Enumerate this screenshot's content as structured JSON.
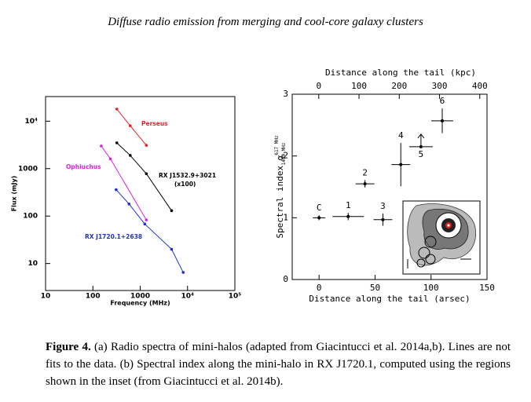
{
  "header": {
    "title": "Diffuse radio emission from merging and cool-core galaxy clusters"
  },
  "chart_data": [
    {
      "type": "line",
      "xscale": "log",
      "yscale": "log",
      "xlabel": "Frequency (MHz)",
      "ylabel": "Flux (mJy)",
      "xlim": [
        10,
        100000
      ],
      "ylim": [
        2.7,
        33000
      ],
      "xticks": [
        10,
        100,
        1000,
        {
          "value": 10000,
          "label": "10⁴"
        },
        {
          "value": 100000,
          "label": "10⁵"
        }
      ],
      "yticks": [
        10,
        100,
        1000,
        {
          "value": 10000,
          "label": "10⁴"
        }
      ],
      "series": [
        {
          "name": "Perseus",
          "color": "#e8202a",
          "x": [
            320,
            615,
            1350
          ],
          "values": [
            18000,
            8000,
            3100
          ]
        },
        {
          "name": "RX J1532.9+3021",
          "color": "#000000",
          "x": [
            320,
            615,
            1350,
            4600
          ],
          "values": [
            3500,
            1900,
            780,
            130
          ]
        },
        {
          "name": "Ophiuchus",
          "color": "#e020e0",
          "x": [
            150,
            235,
            1350
          ],
          "values": [
            3000,
            1600,
            83
          ]
        },
        {
          "name": "RX J1720.1+2638",
          "color": "#2030d0",
          "x": [
            310,
            580,
            1250,
            4600,
            8100
          ],
          "values": [
            360,
            180,
            68,
            20,
            6.5
          ]
        }
      ],
      "annotations": [
        "(x100)"
      ]
    },
    {
      "type": "scatter",
      "xlabel": "Distance along the tail (arsec)",
      "x2label": "Distance along the tail (kpc)",
      "ylabel": "Spectral index α",
      "ylabel_sup": "617 MHz",
      "ylabel_sub": "1400 MHz",
      "xlim": [
        -24,
        150
      ],
      "x2lim": [
        -66,
        418
      ],
      "ylim": [
        0,
        3
      ],
      "xticks": [
        0,
        50,
        100,
        150
      ],
      "x2ticks": [
        0,
        100,
        200,
        300,
        400
      ],
      "yticks": [
        0,
        1,
        2,
        3
      ],
      "point_labels": [
        "C",
        "1",
        "2",
        "3",
        "4",
        "5",
        "6"
      ],
      "x": [
        0,
        26,
        41,
        57,
        73,
        91,
        110
      ],
      "values": [
        1.0,
        1.02,
        1.55,
        0.97,
        1.86,
        2.15,
        2.57
      ],
      "xerr": [
        5.6,
        14,
        8.4,
        8.4,
        8.4,
        10.5,
        9.8
      ],
      "yerr": [
        0.04,
        0.06,
        0.06,
        0.1,
        0.35,
        null,
        0.2
      ],
      "lower_limit": [
        false,
        false,
        false,
        false,
        false,
        true,
        false
      ],
      "color": "#000000"
    }
  ],
  "caption": {
    "label": "Figure 4.",
    "text": "(a) Radio spectra of mini-halos (adapted from Giacintucci et al. 2014a,b). Lines are not fits to the data. (b) Spectral index along the mini-halo in RX J1720.1, computed using the regions shown in the inset (from Giacintucci et al. 2014b)."
  }
}
